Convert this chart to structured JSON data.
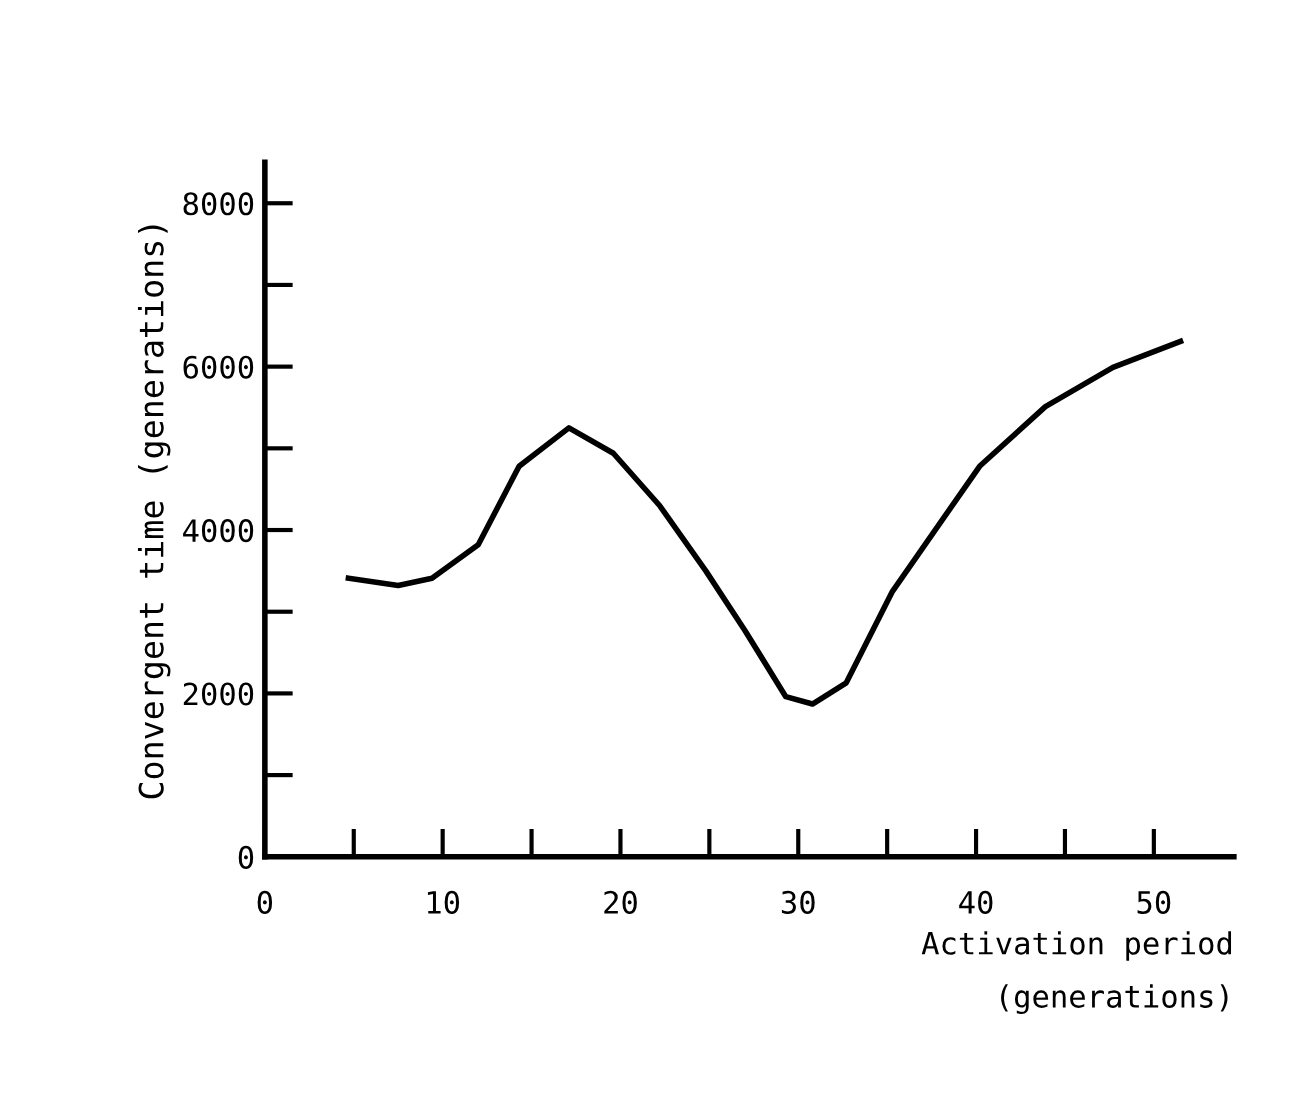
{
  "chart_data": {
    "type": "line",
    "xlabel": "Activation period\n(generations)",
    "ylabel": "Convergent time (generations)",
    "series": [
      {
        "color": "#000000",
        "x": [
          4.7,
          7.5,
          9.4,
          12.0,
          14.3,
          17.1,
          19.6,
          22.2,
          24.8,
          27.0,
          29.3,
          30.8,
          32.7,
          35.3,
          40.2,
          43.9,
          47.7,
          51.5
        ],
        "values": [
          3410,
          3320,
          3410,
          3820,
          4780,
          5250,
          4940,
          4300,
          3500,
          2770,
          1960,
          1870,
          2130,
          3250,
          4780,
          5510,
          5990,
          6310
        ]
      }
    ],
    "xlim": [
      0,
      54.5
    ],
    "ylim": [
      0,
      8500
    ],
    "xticks": [
      0,
      {
        "value": 5,
        "label": null
      },
      10,
      {
        "value": 15,
        "label": null
      },
      20,
      {
        "value": 25,
        "label": null
      },
      30,
      {
        "value": 35,
        "label": null
      },
      40,
      {
        "value": 45,
        "label": null
      },
      50
    ],
    "yticks": [
      0,
      {
        "value": 1000,
        "label": null
      },
      2000,
      {
        "value": 3000,
        "label": null
      },
      4000,
      {
        "value": 5000,
        "label": null
      },
      6000,
      {
        "value": 7000,
        "label": null
      },
      8000
    ],
    "grid": false,
    "legend": false,
    "marker": "none",
    "line_style": "solid"
  }
}
